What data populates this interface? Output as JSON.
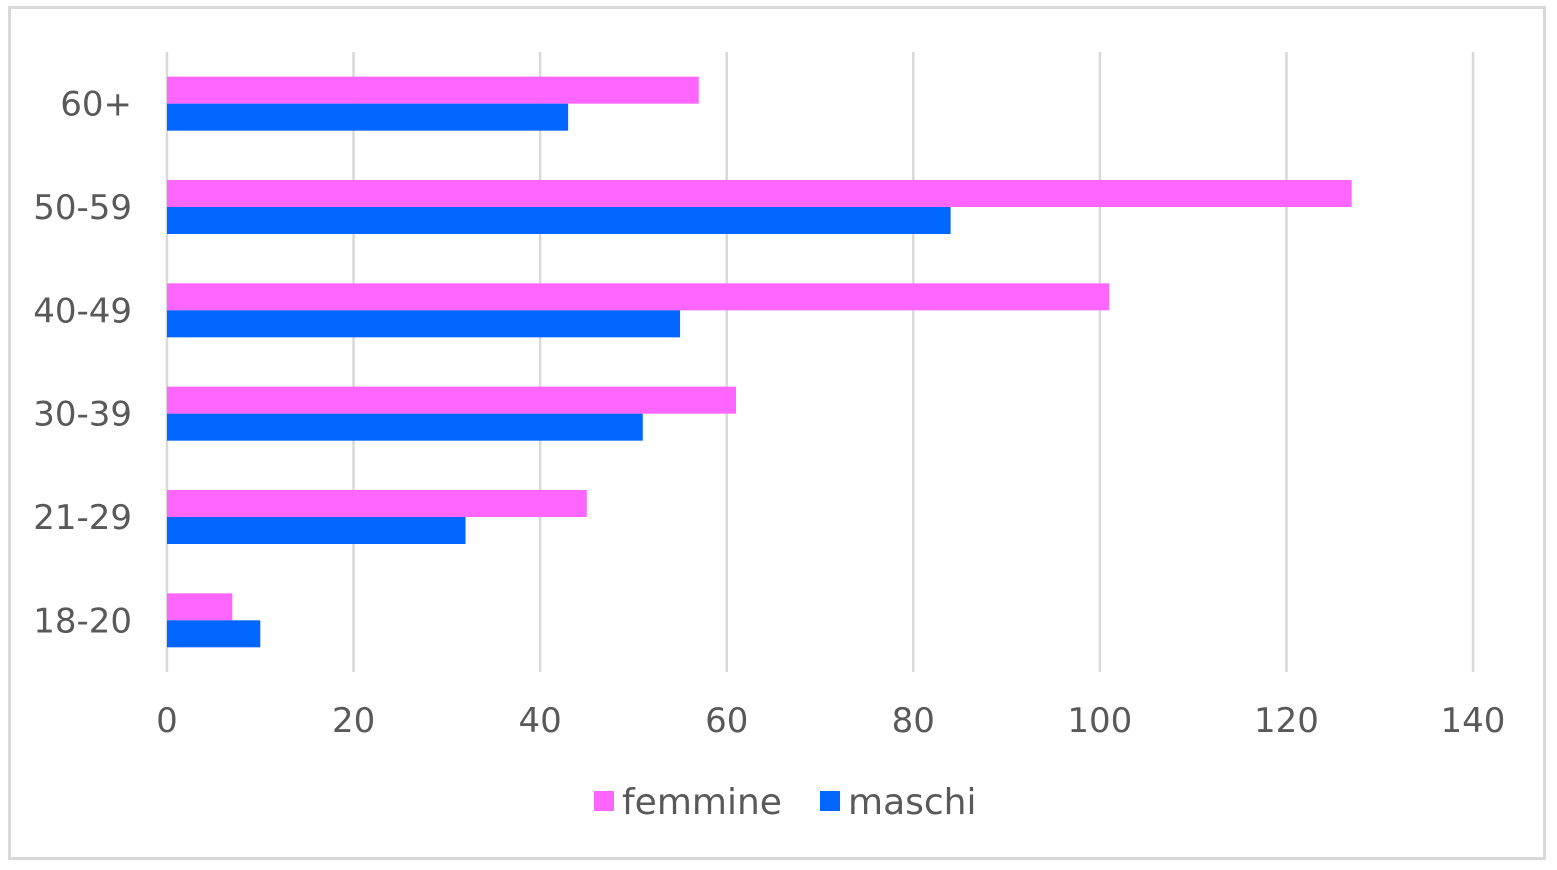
{
  "chart_data": {
    "type": "bar",
    "orientation": "horizontal",
    "categories": [
      "60+",
      "50-59",
      "40-49",
      "30-39",
      "21-29",
      "18-20"
    ],
    "series": [
      {
        "name": "femmine",
        "color": "#ff66ff",
        "values": [
          57,
          127,
          101,
          61,
          45,
          7
        ]
      },
      {
        "name": "maschi",
        "color": "#0066ff",
        "values": [
          43,
          84,
          55,
          51,
          32,
          10
        ]
      }
    ],
    "xlim": [
      0,
      140
    ],
    "xticks": [
      0,
      20,
      40,
      60,
      80,
      100,
      120,
      140
    ],
    "grid": true,
    "legend_position": "bottom",
    "title": "",
    "xlabel": "",
    "ylabel": ""
  }
}
